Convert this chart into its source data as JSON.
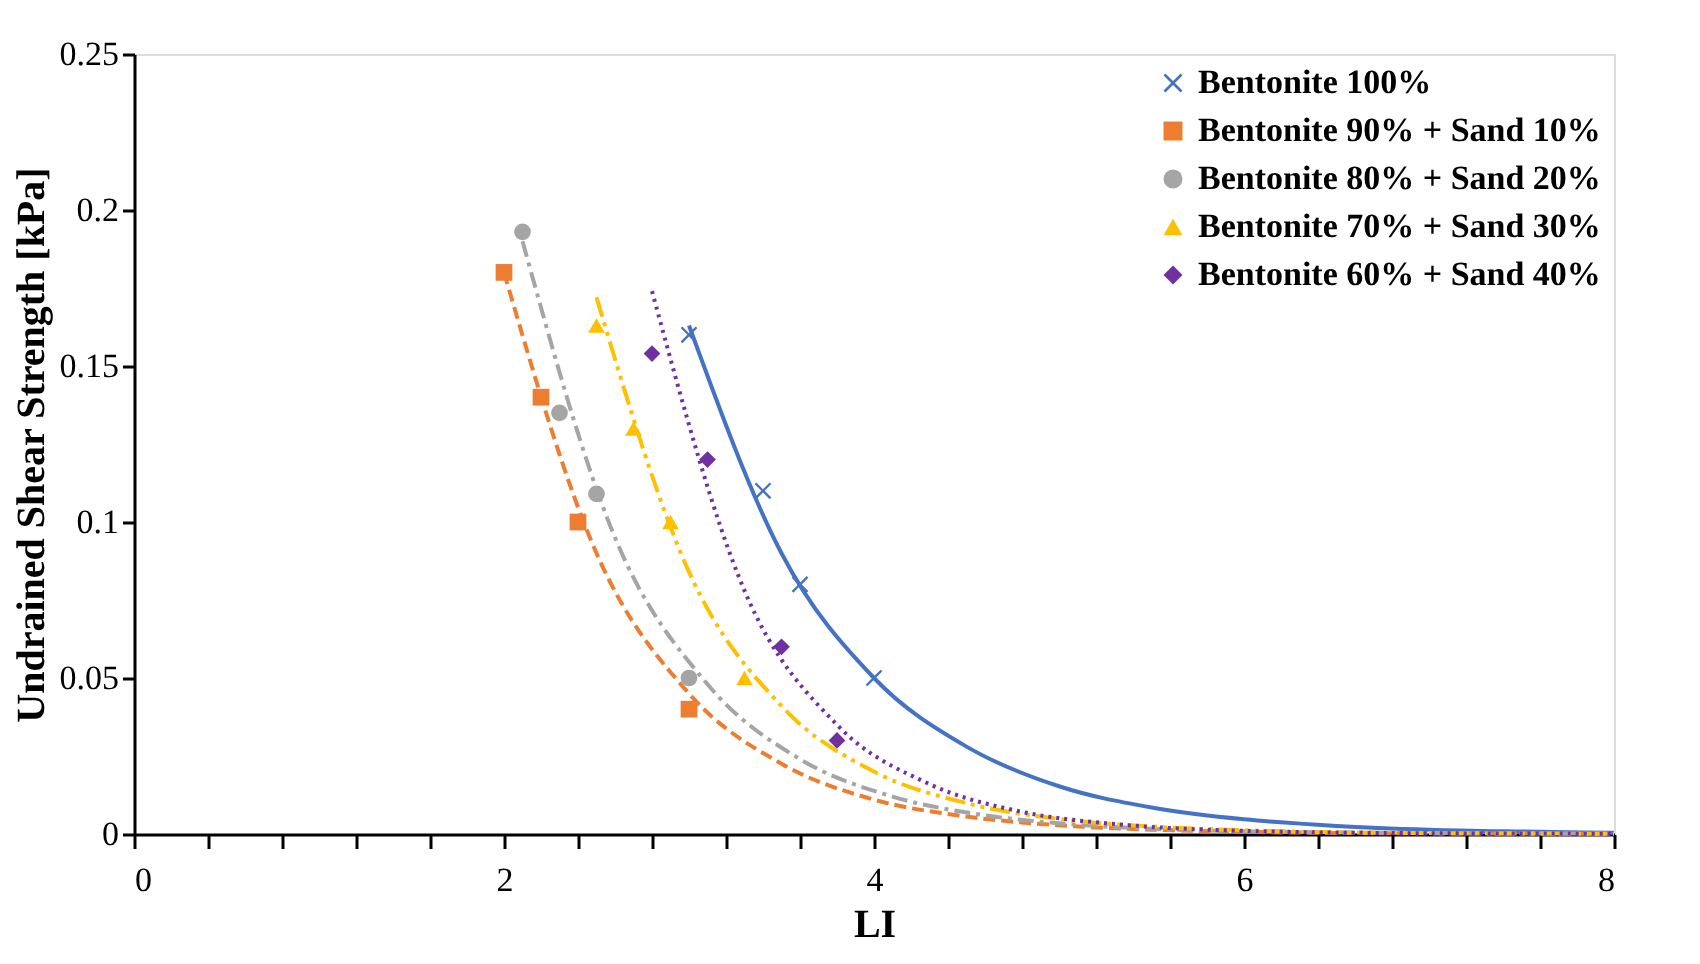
{
  "chart_data": {
    "type": "scatter",
    "xlabel": "LI",
    "ylabel": "Undrained Shear Strength [kPa]",
    "xlim": [
      0,
      8
    ],
    "ylim": [
      0,
      0.25
    ],
    "xticks": [
      0,
      {
        "value": 0.4,
        "label": null
      },
      {
        "value": 0.8,
        "label": null
      },
      {
        "value": 1.2,
        "label": null
      },
      {
        "value": 1.6,
        "label": null
      },
      2,
      {
        "value": 2.4,
        "label": null
      },
      {
        "value": 2.8,
        "label": null
      },
      {
        "value": 3.2,
        "label": null
      },
      {
        "value": 3.6,
        "label": null
      },
      4,
      {
        "value": 4.4,
        "label": null
      },
      {
        "value": 4.8,
        "label": null
      },
      {
        "value": 5.2,
        "label": null
      },
      {
        "value": 5.6,
        "label": null
      },
      6,
      {
        "value": 6.4,
        "label": null
      },
      {
        "value": 6.8,
        "label": null
      },
      {
        "value": 7.2,
        "label": null
      },
      {
        "value": 7.6,
        "label": null
      },
      8
    ],
    "yticks": [
      0,
      0.05,
      0.1,
      0.15,
      0.2,
      0.25
    ],
    "grid": false,
    "legend": "top right",
    "series": [
      {
        "name": "Bentonite 100%",
        "color": "#4472c4",
        "marker": "cross",
        "x": [
          3.0,
          3.4,
          3.6,
          4.0
        ],
        "values": [
          0.16,
          0.11,
          0.08,
          0.05
        ]
      },
      {
        "name": "Bentonite 90% + Sand 10%",
        "color": "#ed7d31",
        "marker": "square",
        "x": [
          2.0,
          2.2,
          2.4,
          3.0
        ],
        "values": [
          0.18,
          0.14,
          0.1,
          0.04
        ]
      },
      {
        "name": "Bentonite 80% + Sand 20%",
        "color": "#a5a5a5",
        "marker": "circle",
        "x": [
          2.1,
          2.3,
          2.5,
          3.0
        ],
        "values": [
          0.193,
          0.135,
          0.109,
          0.05
        ]
      },
      {
        "name": "Bentonite 70% + Sand 30%",
        "color": "#ffc000",
        "marker": "triangle",
        "x": [
          2.5,
          2.7,
          2.9,
          3.3
        ],
        "values": [
          0.163,
          0.13,
          0.1,
          0.05
        ]
      },
      {
        "name": "Bentonite 60% + Sand 40%",
        "color": "#7030a0",
        "marker": "diamond",
        "x": [
          2.8,
          3.1,
          3.5,
          3.8
        ],
        "values": [
          0.154,
          0.12,
          0.06,
          0.03
        ]
      },
      {
        "type": "line",
        "color": "#4472c4",
        "line_style": "solid",
        "x": [
          3,
          3.5,
          4,
          4.5,
          5,
          5.5,
          6,
          6.5,
          7,
          7.5,
          8
        ],
        "values": [
          0.163,
          0.09,
          0.05,
          0.028,
          0.0153,
          0.0085,
          0.0047,
          0.0026,
          0.0014,
          0.0008,
          0.0004
        ]
      },
      {
        "type": "line",
        "color": "#ed7d31",
        "line_style": "dashed",
        "x": [
          2,
          2.5,
          3,
          3.5,
          4,
          4.5,
          5,
          5.5,
          6,
          7,
          8
        ],
        "values": [
          0.18,
          0.09,
          0.045,
          0.0225,
          0.011,
          0.0056,
          0.0028,
          0.0014,
          0.0007,
          0.0002,
          0.0001
        ]
      },
      {
        "type": "line",
        "color": "#a5a5a5",
        "line_style": "dashdot",
        "x": [
          2.1,
          2.6,
          3.1,
          3.6,
          4.1,
          4.6,
          5.1,
          6.1,
          8
        ],
        "values": [
          0.19,
          0.095,
          0.048,
          0.024,
          0.012,
          0.006,
          0.003,
          0.0008,
          0.0001
        ]
      },
      {
        "type": "line",
        "color": "#ffc000",
        "line_style": "dashdotdot",
        "x": [
          2.5,
          3,
          3.5,
          4,
          4.5,
          5,
          5.5,
          6,
          7,
          8
        ],
        "values": [
          0.172,
          0.084,
          0.041,
          0.02,
          0.0099,
          0.0048,
          0.0024,
          0.0012,
          0.0003,
          0.0001
        ]
      },
      {
        "type": "line",
        "color": "#7030a0",
        "line_style": "dotted",
        "x": [
          2.8,
          3.3,
          3.8,
          4.3,
          4.8,
          5.3,
          5.8,
          6.8,
          8
        ],
        "values": [
          0.174,
          0.078,
          0.035,
          0.016,
          0.0071,
          0.0032,
          0.0014,
          0.0003,
          0.0001
        ]
      }
    ]
  }
}
